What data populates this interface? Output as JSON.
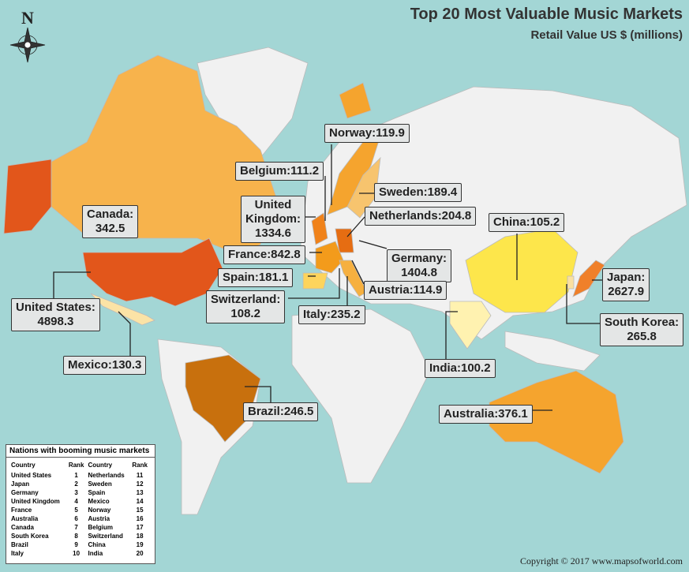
{
  "header": {
    "title": "Top 20 Most Valuable Music Markets",
    "subtitle": "Retail Value US $ (millions)"
  },
  "compass": "N",
  "markets": [
    {
      "lines": [
        "Norway:119.9"
      ]
    },
    {
      "lines": [
        "Belgium:111.2"
      ]
    },
    {
      "lines": [
        "Sweden:189.4"
      ]
    },
    {
      "lines": [
        "United",
        "Kingdom:",
        "1334.6"
      ]
    },
    {
      "lines": [
        "Canada:",
        "342.5"
      ]
    },
    {
      "lines": [
        "Netherlands:204.8"
      ]
    },
    {
      "lines": [
        "China:105.2"
      ]
    },
    {
      "lines": [
        "France:842.8"
      ]
    },
    {
      "lines": [
        "Germany:",
        "1404.8"
      ]
    },
    {
      "lines": [
        "Japan:",
        "2627.9"
      ]
    },
    {
      "lines": [
        "Spain:181.1"
      ]
    },
    {
      "lines": [
        "Austria:114.9"
      ]
    },
    {
      "lines": [
        "Switzerland:",
        "108.2"
      ]
    },
    {
      "lines": [
        "United States:",
        "4898.3"
      ]
    },
    {
      "lines": [
        "Italy:235.2"
      ]
    },
    {
      "lines": [
        "South Korea:",
        "265.8"
      ]
    },
    {
      "lines": [
        "India:100.2"
      ]
    },
    {
      "lines": [
        "Mexico:130.3"
      ]
    },
    {
      "lines": [
        "Brazil:246.5"
      ]
    },
    {
      "lines": [
        "Australia:376.1"
      ]
    }
  ],
  "table": {
    "title": "Nations with booming music markets",
    "columns": [
      "Country",
      "Rank",
      "Country",
      "Rank"
    ],
    "rows": [
      [
        "United States",
        1,
        "Netherlands",
        11
      ],
      [
        "Japan",
        2,
        "Sweden",
        12
      ],
      [
        "Germany",
        3,
        "Spain",
        13
      ],
      [
        "United Kingdom",
        4,
        "Mexico",
        14
      ],
      [
        "France",
        5,
        "Norway",
        15
      ],
      [
        "Australia",
        6,
        "Austria",
        16
      ],
      [
        "Canada",
        7,
        "Belgium",
        17
      ],
      [
        "South Korea",
        8,
        "Switzerland",
        18
      ],
      [
        "Brazil",
        9,
        "China",
        19
      ],
      [
        "Italy",
        10,
        "India",
        20
      ]
    ]
  },
  "footer": "Copyright © 2017 www.mapsofworld.com"
}
